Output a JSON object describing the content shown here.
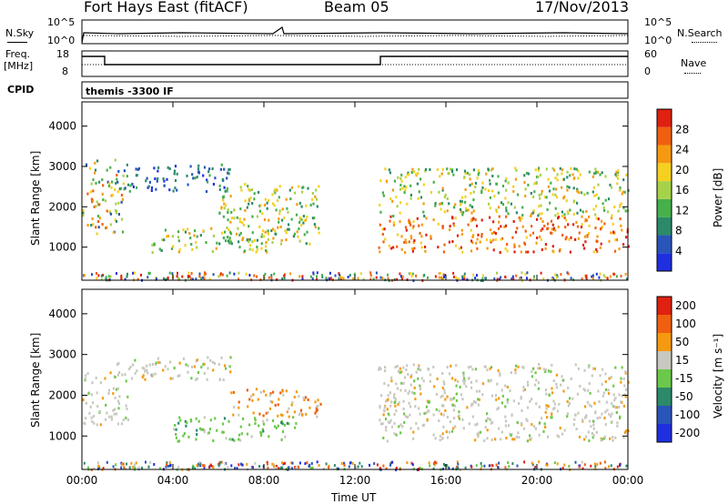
{
  "header": {
    "station": "Fort Hays East (fitACF)",
    "beam": "Beam 05",
    "date": "17/Nov/2013"
  },
  "top_panels": {
    "nsky_label": "N.Sky",
    "nsky_ticks": [
      "10^5",
      "10^0"
    ],
    "nsearch_label": "N.Search",
    "nsearch_ticks": [
      "10^5",
      "10^0"
    ],
    "freq_label_1": "Freq.",
    "freq_label_2": "[MHz]",
    "freq_ticks": [
      "18",
      "8"
    ],
    "nave_label": "Nave",
    "nave_ticks": [
      "60",
      "0"
    ],
    "cpid_label": "CPID",
    "cpid_value": "themis -3300 IF"
  },
  "chart_data": [
    {
      "type": "heatmap",
      "name": "power",
      "ylabel": "Slant Range [km]",
      "xlabel": "",
      "ylim": [
        180,
        4600
      ],
      "xlim": [
        0,
        24
      ],
      "x_ticks": [
        "00:00",
        "04:00",
        "08:00",
        "12:00",
        "16:00",
        "20:00",
        "00:00"
      ],
      "y_ticks": [
        1000,
        2000,
        3000,
        4000
      ],
      "colorbar": {
        "label": "Power [dB]",
        "ticks": [
          4,
          8,
          12,
          16,
          20,
          24,
          28
        ],
        "range": [
          0,
          32
        ],
        "colors": [
          "#1f2fe0",
          "#2a55b8",
          "#2c8a6a",
          "#46b04a",
          "#a6d24a",
          "#f5d020",
          "#f59a10",
          "#f06010",
          "#e02010"
        ]
      },
      "regions": [
        {
          "t0": 0.0,
          "t1": 1.8,
          "r0": 1350,
          "r1": 3200,
          "level": "mixed"
        },
        {
          "t0": 1.8,
          "t1": 6.5,
          "r0": 2400,
          "r1": 3100,
          "level": "low"
        },
        {
          "t0": 3.0,
          "t1": 8.5,
          "r0": 900,
          "r1": 1500,
          "level": "medium"
        },
        {
          "t0": 6.0,
          "t1": 10.5,
          "r0": 1100,
          "r1": 2600,
          "level": "medium"
        },
        {
          "t0": 13.0,
          "t1": 24.0,
          "r0": 900,
          "r1": 1800,
          "level": "high"
        },
        {
          "t0": 13.0,
          "t1": 24.0,
          "r0": 1800,
          "r1": 3000,
          "level": "medium"
        }
      ]
    },
    {
      "type": "heatmap",
      "name": "velocity",
      "ylabel": "Slant Range [km]",
      "xlabel": "Time UT",
      "ylim": [
        180,
        4600
      ],
      "xlim": [
        0,
        24
      ],
      "x_ticks": [
        "00:00",
        "04:00",
        "08:00",
        "12:00",
        "16:00",
        "20:00",
        "00:00"
      ],
      "y_ticks": [
        1000,
        2000,
        3000,
        4000
      ],
      "colorbar": {
        "label": "Velocity [m s⁻¹]",
        "ticks": [
          200,
          100,
          50,
          15,
          -15,
          -50,
          -100,
          -200
        ],
        "colors": [
          "#1f2fe0",
          "#2a55b8",
          "#2c8a6a",
          "#6cc84a",
          "#c8c8c0",
          "#f59a10",
          "#f06010",
          "#e02010"
        ]
      },
      "regions": [
        {
          "t0": 0.0,
          "t1": 2.0,
          "r0": 1300,
          "r1": 2600,
          "level": "ground"
        },
        {
          "t0": 1.5,
          "t1": 6.5,
          "r0": 2400,
          "r1": 3000,
          "level": "ground"
        },
        {
          "t0": 4.0,
          "t1": 9.5,
          "r0": 900,
          "r1": 1500,
          "level": "positive"
        },
        {
          "t0": 6.5,
          "t1": 10.5,
          "r0": 1500,
          "r1": 2200,
          "level": "negative"
        },
        {
          "t0": 13.0,
          "t1": 24.0,
          "r0": 900,
          "r1": 2800,
          "level": "ground"
        }
      ]
    }
  ]
}
